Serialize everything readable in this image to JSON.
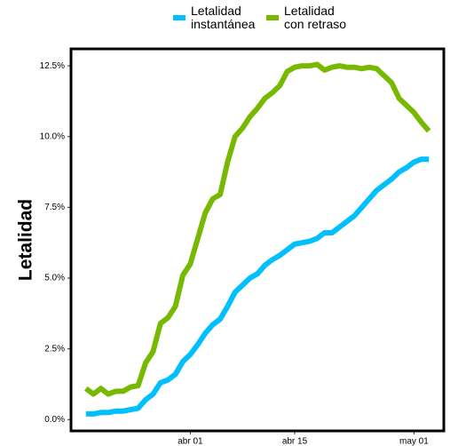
{
  "chart_data": {
    "type": "line",
    "y_label": "Letalidad",
    "x": [
      "03-18",
      "03-19",
      "03-20",
      "03-21",
      "03-22",
      "03-23",
      "03-24",
      "03-25",
      "03-26",
      "03-27",
      "03-28",
      "03-29",
      "03-30",
      "03-31",
      "04-01",
      "04-02",
      "04-03",
      "04-04",
      "04-05",
      "04-06",
      "04-07",
      "04-08",
      "04-09",
      "04-10",
      "04-11",
      "04-12",
      "04-13",
      "04-14",
      "04-15",
      "04-16",
      "04-17",
      "04-18",
      "04-19",
      "04-20",
      "04-21",
      "04-22",
      "04-23",
      "04-24",
      "04-25",
      "04-26",
      "04-27",
      "04-28",
      "04-29",
      "04-30",
      "05-01",
      "05-02",
      "05-03"
    ],
    "series": [
      {
        "name": "Letalidad\ninstantánea",
        "color": "#00bfff",
        "values": [
          0.2,
          0.2,
          0.25,
          0.25,
          0.3,
          0.3,
          0.35,
          0.4,
          0.7,
          0.9,
          1.3,
          1.4,
          1.6,
          2.05,
          2.3,
          2.65,
          3.05,
          3.35,
          3.55,
          4.0,
          4.5,
          4.75,
          5.0,
          5.15,
          5.45,
          5.65,
          5.8,
          6.0,
          6.2,
          6.25,
          6.3,
          6.4,
          6.6,
          6.6,
          6.8,
          7.0,
          7.2,
          7.5,
          7.8,
          8.1,
          8.3,
          8.5,
          8.75,
          8.9,
          9.1,
          9.2,
          9.2
        ]
      },
      {
        "name": "Letalidad\ncon retraso",
        "color": "#76b900",
        "values": [
          1.1,
          0.9,
          1.1,
          0.9,
          1.0,
          1.0,
          1.15,
          1.2,
          2.0,
          2.4,
          3.4,
          3.6,
          4.0,
          5.1,
          5.5,
          6.4,
          7.3,
          7.8,
          7.95,
          9.1,
          10.0,
          10.3,
          10.7,
          11.0,
          11.35,
          11.55,
          11.8,
          12.3,
          12.45,
          12.5,
          12.5,
          12.55,
          12.35,
          12.45,
          12.5,
          12.45,
          12.45,
          12.4,
          12.45,
          12.4,
          12.15,
          11.9,
          11.35,
          11.1,
          10.85,
          10.5,
          10.2
        ]
      }
    ],
    "xlim": [
      "03-16",
      "05-05"
    ],
    "xticks": [
      {
        "value": "04-01",
        "label": "abr 01"
      },
      {
        "value": "04-15",
        "label": "abr 15"
      },
      {
        "value": "05-01",
        "label": "may 01"
      }
    ],
    "ylim": [
      -0.4,
      13.1
    ],
    "yticks": [
      {
        "value": 0,
        "label": "0.0%"
      },
      {
        "value": 2.5,
        "label": "2.5%"
      },
      {
        "value": 5,
        "label": "5.0%"
      },
      {
        "value": 7.5,
        "label": "7.5%"
      },
      {
        "value": 10,
        "label": "10.0%"
      },
      {
        "value": 12.5,
        "label": "12.5%"
      }
    ],
    "legend": "top"
  }
}
